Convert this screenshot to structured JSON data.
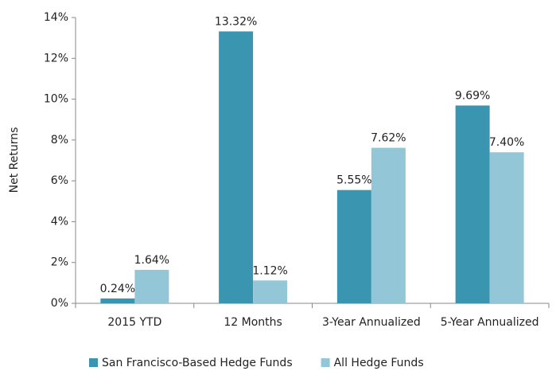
{
  "chart_data": {
    "type": "bar",
    "y_label": "Net Returns",
    "categories": [
      "2015 YTD",
      "12 Months",
      "3-Year Annualized",
      "5-Year Annualized"
    ],
    "series": [
      {
        "name": "San Francisco-Based Hedge Funds",
        "color": "#3a96b0",
        "values": [
          0.24,
          13.32,
          5.55,
          9.69
        ],
        "value_labels": [
          "0.24%",
          "13.32%",
          "5.55%",
          "9.69%"
        ]
      },
      {
        "name": "All Hedge Funds",
        "color": "#93c6d6",
        "values": [
          1.64,
          1.12,
          7.62,
          7.4
        ],
        "value_labels": [
          "1.64%",
          "1.12%",
          "7.62%",
          "7.40%"
        ]
      }
    ],
    "ylim": [
      0,
      14
    ],
    "yticks": [
      {
        "value": 0,
        "label": "0%"
      },
      {
        "value": 2,
        "label": "2%"
      },
      {
        "value": 4,
        "label": "4%"
      },
      {
        "value": 6,
        "label": "6%"
      },
      {
        "value": 8,
        "label": "8%"
      },
      {
        "value": 10,
        "label": "10%"
      },
      {
        "value": 12,
        "label": "12%"
      },
      {
        "value": 14,
        "label": "14%"
      }
    ],
    "legend": "bottom"
  }
}
